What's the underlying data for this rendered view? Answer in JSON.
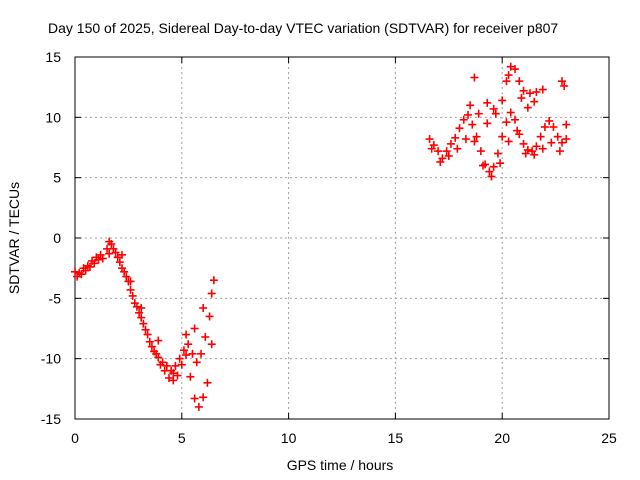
{
  "chart_data": {
    "type": "scatter",
    "title": "Day 150 of 2025, Sidereal Day-to-day VTEC variation (SDTVAR) for receiver p807",
    "xlabel": "GPS time / hours",
    "ylabel": "SDTVAR / TECUs",
    "xlim": [
      0,
      25
    ],
    "ylim": [
      -15,
      15
    ],
    "xticks": [
      "0",
      "5",
      "10",
      "15",
      "20",
      "25"
    ],
    "yticks": [
      "-15",
      "-10",
      "-5",
      "0",
      "5",
      "10",
      "15"
    ],
    "grid": true,
    "marker": "+",
    "series": [
      {
        "color": "#ff0000",
        "points": [
          [
            0.0,
            -2.8
          ],
          [
            0.2,
            -2.9
          ],
          [
            0.4,
            -2.5
          ],
          [
            0.6,
            -2.3
          ],
          [
            0.8,
            -1.9
          ],
          [
            1.0,
            -1.6
          ],
          [
            1.2,
            -1.4
          ],
          [
            1.5,
            -0.9
          ],
          [
            1.7,
            -0.5
          ],
          [
            1.9,
            -1.2
          ],
          [
            2.1,
            -2.0
          ],
          [
            2.3,
            -2.8
          ],
          [
            2.5,
            -3.6
          ],
          [
            2.7,
            -4.8
          ],
          [
            2.9,
            -5.7
          ],
          [
            3.1,
            -6.6
          ],
          [
            3.3,
            -7.6
          ],
          [
            3.5,
            -8.6
          ],
          [
            3.7,
            -9.4
          ],
          [
            3.9,
            -9.9
          ],
          [
            4.1,
            -10.3
          ],
          [
            4.3,
            -10.6
          ],
          [
            4.5,
            -11.0
          ],
          [
            4.7,
            -10.6
          ],
          [
            4.9,
            -10.0
          ],
          [
            5.1,
            -9.3
          ],
          [
            5.3,
            -8.8
          ],
          [
            5.5,
            -9.6
          ],
          [
            5.7,
            -10.3
          ],
          [
            5.9,
            -9.6
          ],
          [
            6.1,
            -8.2
          ],
          [
            6.3,
            -6.5
          ],
          [
            6.4,
            -4.6
          ],
          [
            0.1,
            -3.2
          ],
          [
            0.3,
            -3.0
          ],
          [
            0.5,
            -2.7
          ],
          [
            0.7,
            -2.4
          ],
          [
            0.9,
            -2.1
          ],
          [
            1.1,
            -1.8
          ],
          [
            1.3,
            -1.7
          ],
          [
            1.6,
            -1.3
          ],
          [
            1.8,
            -0.9
          ],
          [
            2.0,
            -1.6
          ],
          [
            2.2,
            -2.5
          ],
          [
            2.4,
            -3.2
          ],
          [
            2.6,
            -4.3
          ],
          [
            2.8,
            -5.4
          ],
          [
            3.0,
            -6.2
          ],
          [
            3.2,
            -7.1
          ],
          [
            3.4,
            -8.0
          ],
          [
            3.6,
            -9.0
          ],
          [
            3.8,
            -9.6
          ],
          [
            4.0,
            -10.5
          ],
          [
            4.2,
            -11.0
          ],
          [
            4.4,
            -11.6
          ],
          [
            4.6,
            -11.8
          ],
          [
            4.8,
            -11.4
          ],
          [
            5.0,
            -10.5
          ],
          [
            5.2,
            -9.7
          ],
          [
            5.4,
            -11.5
          ],
          [
            5.6,
            -13.3
          ],
          [
            5.8,
            -14.0
          ],
          [
            6.0,
            -13.2
          ],
          [
            6.2,
            -12.0
          ],
          [
            6.4,
            -8.8
          ],
          [
            6.5,
            -3.5
          ],
          [
            1.6,
            -0.3
          ],
          [
            2.2,
            -1.4
          ],
          [
            2.6,
            -3.6
          ],
          [
            3.1,
            -5.8
          ],
          [
            3.9,
            -8.5
          ],
          [
            4.6,
            -11.2
          ],
          [
            5.2,
            -8.0
          ],
          [
            5.6,
            -7.5
          ],
          [
            6.0,
            -5.8
          ],
          [
            16.6,
            8.2
          ],
          [
            16.8,
            7.7
          ],
          [
            17.0,
            7.2
          ],
          [
            17.2,
            6.6
          ],
          [
            17.4,
            7.2
          ],
          [
            17.6,
            7.8
          ],
          [
            17.8,
            8.3
          ],
          [
            18.0,
            9.1
          ],
          [
            18.2,
            9.8
          ],
          [
            18.4,
            10.2
          ],
          [
            18.6,
            9.4
          ],
          [
            18.8,
            8.4
          ],
          [
            19.0,
            7.2
          ],
          [
            19.2,
            6.1
          ],
          [
            19.4,
            5.5
          ],
          [
            19.6,
            5.9
          ],
          [
            19.8,
            7.0
          ],
          [
            20.0,
            8.4
          ],
          [
            20.2,
            9.6
          ],
          [
            20.4,
            10.4
          ],
          [
            20.6,
            9.8
          ],
          [
            20.8,
            8.6
          ],
          [
            21.0,
            7.8
          ],
          [
            21.2,
            7.3
          ],
          [
            21.4,
            7.2
          ],
          [
            21.6,
            7.6
          ],
          [
            21.8,
            8.4
          ],
          [
            22.0,
            9.2
          ],
          [
            22.2,
            9.7
          ],
          [
            22.4,
            9.2
          ],
          [
            22.6,
            8.4
          ],
          [
            22.8,
            7.9
          ],
          [
            23.0,
            8.2
          ],
          [
            16.7,
            7.4
          ],
          [
            17.1,
            6.3
          ],
          [
            17.5,
            6.8
          ],
          [
            17.9,
            7.4
          ],
          [
            18.3,
            8.2
          ],
          [
            18.7,
            8.0
          ],
          [
            19.1,
            6.0
          ],
          [
            19.5,
            5.1
          ],
          [
            19.9,
            6.2
          ],
          [
            20.3,
            8.0
          ],
          [
            20.7,
            8.9
          ],
          [
            21.1,
            7.0
          ],
          [
            21.5,
            6.9
          ],
          [
            21.9,
            7.4
          ],
          [
            22.3,
            7.9
          ],
          [
            22.7,
            7.2
          ],
          [
            23.0,
            9.4
          ],
          [
            18.5,
            11.0
          ],
          [
            18.9,
            10.3
          ],
          [
            19.3,
            9.5
          ],
          [
            19.7,
            10.3
          ],
          [
            20.0,
            11.4
          ],
          [
            20.2,
            13.0
          ],
          [
            20.4,
            14.2
          ],
          [
            20.6,
            14.0
          ],
          [
            20.8,
            13.0
          ],
          [
            21.0,
            12.2
          ],
          [
            21.3,
            12.0
          ],
          [
            21.6,
            12.1
          ],
          [
            21.9,
            12.3
          ],
          [
            22.8,
            13.0
          ],
          [
            22.9,
            12.6
          ],
          [
            18.7,
            13.3
          ],
          [
            19.3,
            11.2
          ],
          [
            19.6,
            10.7
          ],
          [
            20.3,
            13.5
          ],
          [
            20.9,
            11.6
          ],
          [
            21.2,
            10.8
          ],
          [
            21.5,
            11.3
          ]
        ]
      }
    ]
  }
}
